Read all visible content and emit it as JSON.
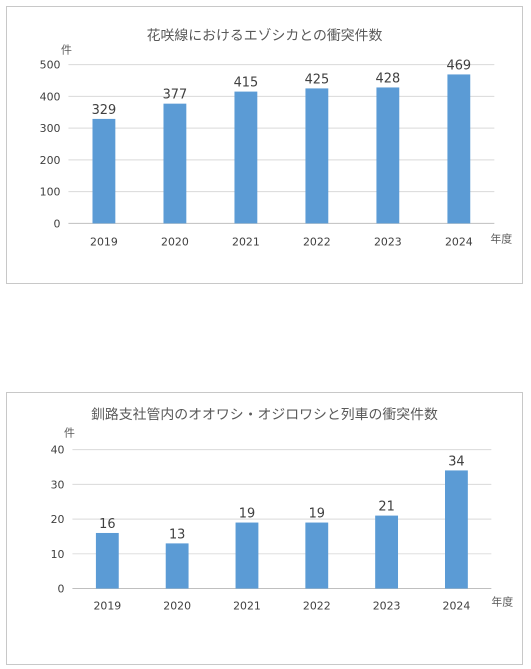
{
  "chart_data": [
    {
      "type": "bar",
      "title": "花咲線におけるエゾシカとの衝突件数",
      "ylabel": "件",
      "xlabel": "年度",
      "categories": [
        "2019",
        "2020",
        "2021",
        "2022",
        "2023",
        "2024"
      ],
      "values": [
        329,
        377,
        415,
        425,
        428,
        469
      ],
      "ylim": [
        0,
        500
      ],
      "yticks": [
        0,
        100,
        200,
        300,
        400,
        500
      ],
      "grid": true,
      "color": "#5b9bd5"
    },
    {
      "type": "bar",
      "title": "釧路支社管内のオオワシ・オジロワシと列車の衝突件数",
      "ylabel": "件",
      "xlabel": "年度",
      "categories": [
        "2019",
        "2020",
        "2021",
        "2022",
        "2023",
        "2024"
      ],
      "values": [
        16,
        13,
        19,
        19,
        21,
        34
      ],
      "ylim": [
        0,
        40
      ],
      "yticks": [
        0,
        10,
        20,
        30,
        40
      ],
      "grid": true,
      "color": "#5b9bd5"
    }
  ]
}
